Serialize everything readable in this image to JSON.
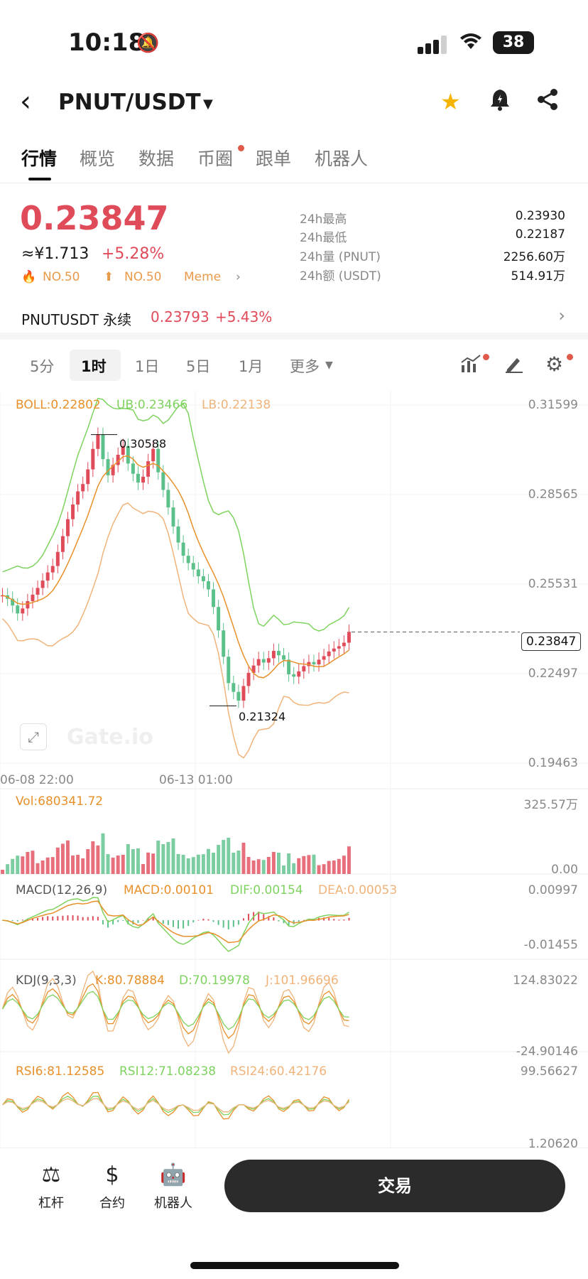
{
  "status_bar": {
    "time": "10:18",
    "battery": "38"
  },
  "header": {
    "pair": "PNUT/USDT"
  },
  "tabs": [
    "行情",
    "概览",
    "数据",
    "币圈",
    "跟单",
    "机器人"
  ],
  "price": {
    "last": "0.23847",
    "cny": "≈¥1.713",
    "change": "+5.28%",
    "rank1": "NO.50",
    "rank2": "NO.50",
    "category": "Meme"
  },
  "stats": [
    {
      "label": "24h最高",
      "value": "0.23930"
    },
    {
      "label": "24h最低",
      "value": "0.22187"
    },
    {
      "label": "24h量 (PNUT)",
      "value": "2256.60万"
    },
    {
      "label": "24h额 (USDT)",
      "value": "514.91万"
    }
  ],
  "perp": {
    "name": "PNUTUSDT 永续",
    "price": "0.23793",
    "change": "+5.43%"
  },
  "timeframes": [
    "5分",
    "1时",
    "1日",
    "5日",
    "1月",
    "更多"
  ],
  "timeframe_active": "1时",
  "indicators": {
    "boll": "BOLL:0.22802",
    "ub": "UB:0.23466",
    "lb": "LB:0.22138",
    "vol": "Vol:680341.72",
    "macd_name": "MACD(12,26,9)",
    "macd": "MACD:0.00101",
    "dif": "DIF:0.00154",
    "dea": "DEA:0.00053",
    "kdj_name": "KDJ(9,3,3)",
    "k": "K:80.78884",
    "d": "D:70.19978",
    "j": "J:101.96696",
    "rsi6": "RSI6:81.12585",
    "rsi12": "RSI12:71.08238",
    "rsi24": "RSI24:60.42176"
  },
  "axis": {
    "price_ticks": [
      "0.31599",
      "0.28565",
      "0.25531",
      "0.22497",
      "0.19463"
    ],
    "current_price": "0.23847",
    "high_marker": "0.30588",
    "low_marker": "0.21324",
    "time_ticks": [
      "06-08 22:00",
      "06-13 01:00"
    ],
    "vol_ticks": [
      "325.57万",
      "0.00"
    ],
    "macd_ticks": [
      "0.00997",
      "-0.01455"
    ],
    "kdj_ticks": [
      "124.83022",
      "-24.90146"
    ],
    "rsi_ticks": [
      "99.56627",
      "1.20620"
    ]
  },
  "watermark": "Gate.io",
  "bottom": {
    "leverage": "杠杆",
    "contract": "合约",
    "robot": "机器人",
    "trade": "交易"
  },
  "colors": {
    "up": "#e04b5a",
    "down": "#5bc08a",
    "boll_mid": "#e8902a",
    "boll_ub": "#7ed35f",
    "boll_lb": "#f0b37a"
  },
  "chart_data": {
    "type": "candlestick",
    "price_range": [
      0.19463,
      0.31599
    ],
    "close_series": [
      0.251,
      0.2498,
      0.2475,
      0.2448,
      0.2465,
      0.249,
      0.2512,
      0.2535,
      0.256,
      0.2588,
      0.261,
      0.2658,
      0.2712,
      0.277,
      0.282,
      0.2865,
      0.289,
      0.294,
      0.301,
      0.3058,
      0.2975,
      0.292,
      0.2955,
      0.299,
      0.302,
      0.296,
      0.2925,
      0.2895,
      0.2915,
      0.2968,
      0.301,
      0.293,
      0.287,
      0.281,
      0.2745,
      0.269,
      0.2645,
      0.262,
      0.2598,
      0.2575,
      0.2558,
      0.253,
      0.247,
      0.239,
      0.23,
      0.221,
      0.218,
      0.215,
      0.22,
      0.2245,
      0.227,
      0.2292,
      0.228,
      0.2295,
      0.232,
      0.2305,
      0.229,
      0.224,
      0.2232,
      0.225,
      0.2268,
      0.2282,
      0.2274,
      0.229,
      0.2302,
      0.2318,
      0.2328,
      0.2336,
      0.2348,
      0.2385
    ]
  }
}
